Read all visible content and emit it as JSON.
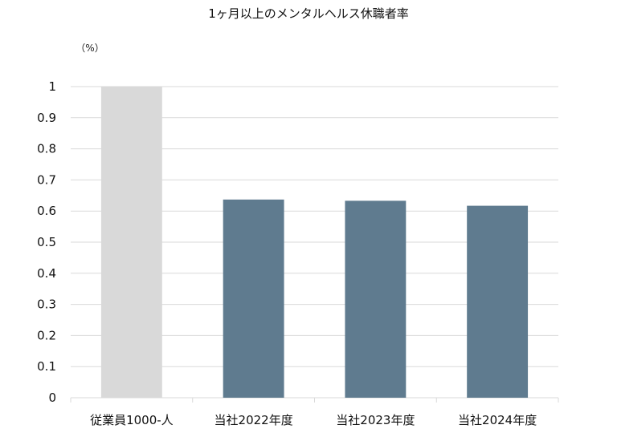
{
  "chart_data": {
    "type": "bar",
    "title": "1ヶ月以上のメンタルヘルス休職者率",
    "unit_label": "（%）",
    "categories": [
      "従業員1000-人",
      "当社2022年度",
      "当社2023年度",
      "当社2024年度"
    ],
    "values": [
      1.0,
      0.637,
      0.633,
      0.617
    ],
    "bar_colors": [
      "#d9d9d9",
      "#5f7b8f",
      "#5f7b8f",
      "#5f7b8f"
    ],
    "ylim": [
      0,
      1
    ],
    "y_ticks": [
      "0",
      "0.1",
      "0.2",
      "0.3",
      "0.4",
      "0.5",
      "0.6",
      "0.7",
      "0.8",
      "0.9",
      "1"
    ],
    "grid": true,
    "legend": "none",
    "xlabel": "",
    "ylabel": ""
  }
}
